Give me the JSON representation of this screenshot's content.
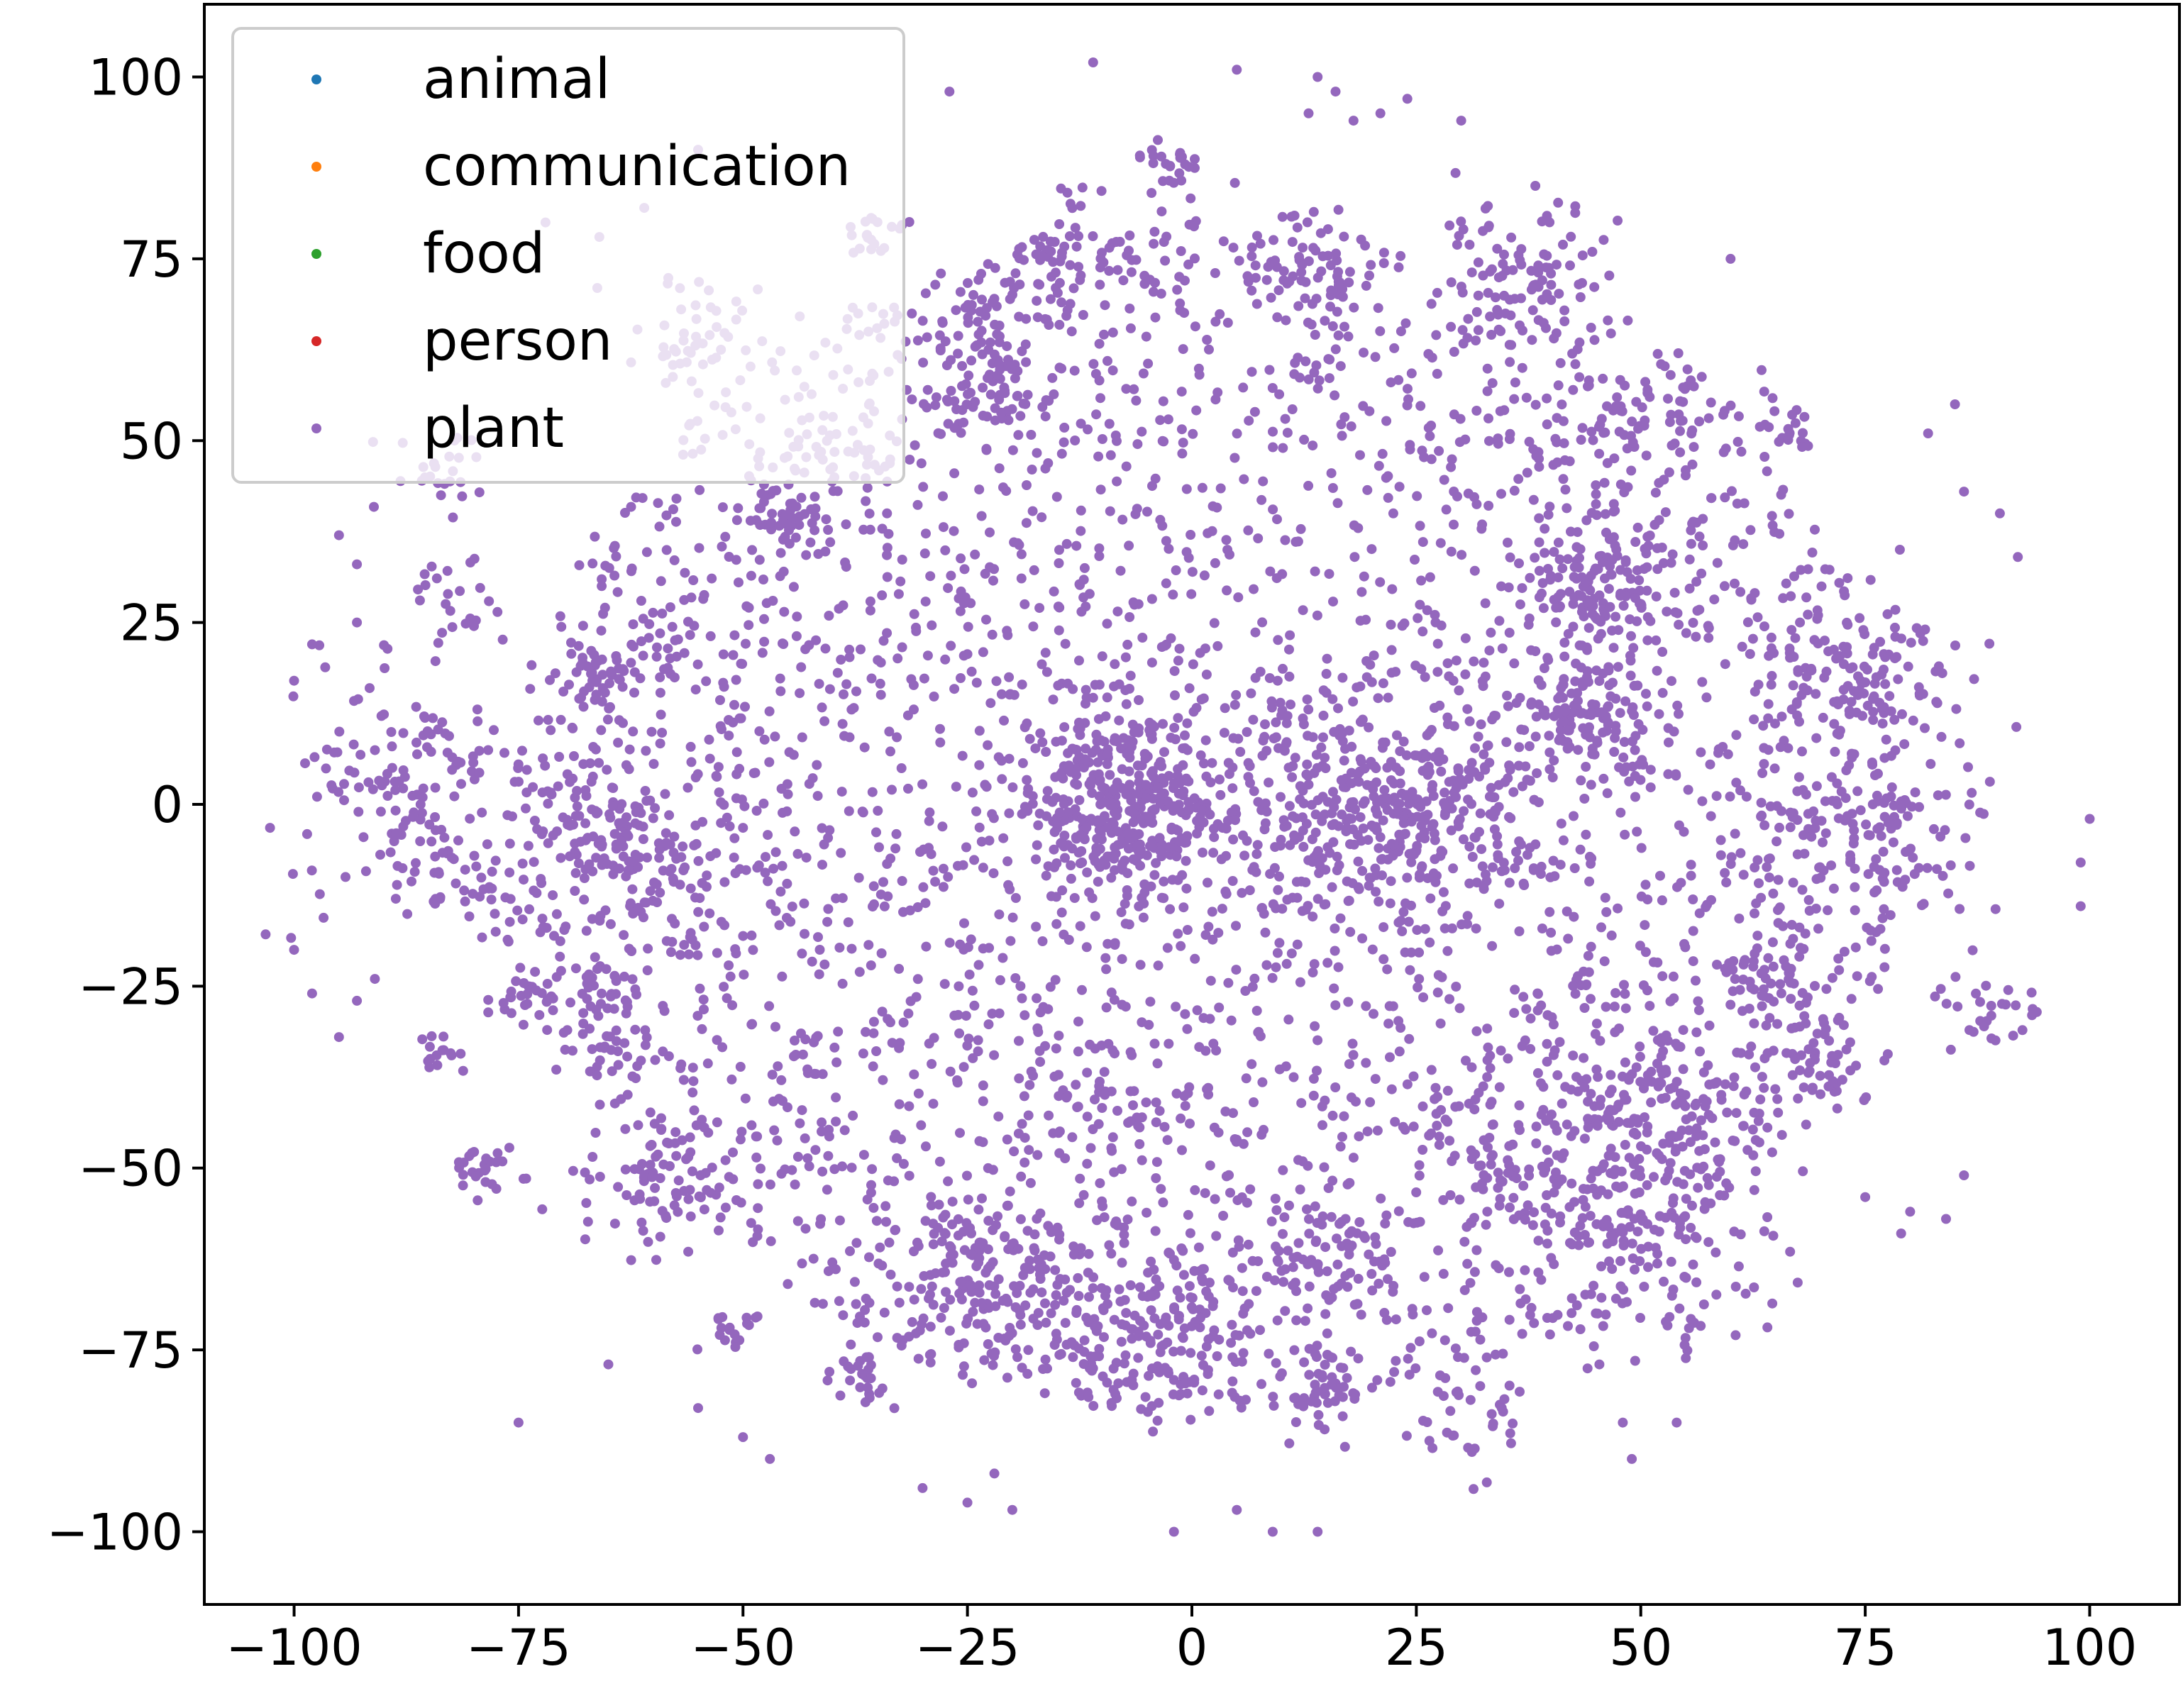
{
  "chart_data": {
    "type": "scatter",
    "title": "",
    "xlabel": "",
    "ylabel": "",
    "xlim": [
      -110,
      110
    ],
    "ylim": [
      -110,
      110
    ],
    "x_ticks": [
      -100,
      -75,
      -50,
      -25,
      0,
      25,
      50,
      75,
      100
    ],
    "y_ticks": [
      -100,
      -75,
      -50,
      -25,
      0,
      25,
      50,
      75,
      100
    ],
    "x_tick_labels": [
      "−100",
      "−75",
      "−50",
      "−25",
      "0",
      "25",
      "50",
      "75",
      "100"
    ],
    "y_tick_labels": [
      "−100",
      "−75",
      "−50",
      "−25",
      "0",
      "25",
      "50",
      "75",
      "100"
    ],
    "grid": false,
    "legend_position": "top-left",
    "series": [
      {
        "name": "animal",
        "color": "#1f77b4",
        "points": []
      },
      {
        "name": "communication",
        "color": "#ff7f0e",
        "points": []
      },
      {
        "name": "food",
        "color": "#2ca02c",
        "points": []
      },
      {
        "name": "person",
        "color": "#d62728",
        "points": []
      },
      {
        "name": "plant",
        "color": "#9467bd",
        "clusters": [
          {
            "cx": -8,
            "cy": 0,
            "n": 340,
            "r": 6
          },
          {
            "cx": 20,
            "cy": -1,
            "n": 300,
            "r": 8
          },
          {
            "cx": -86,
            "cy": 1,
            "n": 160,
            "r": 8
          },
          {
            "cx": -63,
            "cy": -4,
            "n": 150,
            "r": 7
          },
          {
            "cx": 45,
            "cy": 30,
            "n": 110,
            "r": 4
          },
          {
            "cx": 45,
            "cy": 12,
            "n": 100,
            "r": 4
          },
          {
            "cx": 76,
            "cy": 18,
            "n": 110,
            "r": 6
          },
          {
            "cx": 75,
            "cy": -4,
            "n": 110,
            "r": 7
          },
          {
            "cx": 51,
            "cy": -43,
            "n": 150,
            "r": 7
          },
          {
            "cx": 51,
            "cy": -62,
            "n": 130,
            "r": 7
          },
          {
            "cx": 34,
            "cy": -49,
            "n": 60,
            "r": 5
          },
          {
            "cx": -23,
            "cy": -65,
            "n": 150,
            "r": 6
          },
          {
            "cx": -4,
            "cy": -73,
            "n": 150,
            "r": 6
          },
          {
            "cx": 16,
            "cy": -63,
            "n": 70,
            "r": 5
          },
          {
            "cx": -59,
            "cy": -53,
            "n": 80,
            "r": 5
          },
          {
            "cx": -79,
            "cy": -50,
            "n": 25,
            "r": 2
          },
          {
            "cx": -37,
            "cy": -79,
            "n": 28,
            "r": 2
          },
          {
            "cx": -51,
            "cy": -72,
            "n": 18,
            "r": 1.5
          },
          {
            "cx": 16,
            "cy": -81,
            "n": 40,
            "r": 3
          },
          {
            "cx": 31,
            "cy": -85,
            "n": 35,
            "r": 3
          },
          {
            "cx": -45,
            "cy": 40,
            "n": 35,
            "r": 2.5
          },
          {
            "cx": -22,
            "cy": 56,
            "n": 60,
            "r": 4
          },
          {
            "cx": -24,
            "cy": 65,
            "n": 30,
            "r": 3
          },
          {
            "cx": -12,
            "cy": 75,
            "n": 70,
            "r": 5
          },
          {
            "cx": -2,
            "cy": 88,
            "n": 25,
            "r": 2
          },
          {
            "cx": 14,
            "cy": 73,
            "n": 60,
            "r": 4
          },
          {
            "cx": 37,
            "cy": 74,
            "n": 90,
            "r": 5
          },
          {
            "cx": 52,
            "cy": 54,
            "n": 60,
            "r": 5
          },
          {
            "cx": 67,
            "cy": 51,
            "n": 20,
            "r": 1.5
          },
          {
            "cx": 72,
            "cy": -35,
            "n": 40,
            "r": 3
          },
          {
            "cx": 65,
            "cy": -24,
            "n": 35,
            "r": 3
          },
          {
            "cx": 89,
            "cy": -28,
            "n": 30,
            "r": 3
          },
          {
            "cx": -80,
            "cy": -12,
            "n": 30,
            "r": 3
          },
          {
            "cx": -67,
            "cy": -29,
            "n": 50,
            "r": 4
          },
          {
            "cx": -75,
            "cy": -27,
            "n": 25,
            "r": 2
          },
          {
            "cx": -84,
            "cy": -35,
            "n": 15,
            "r": 1.5
          },
          {
            "cx": -66,
            "cy": 16,
            "n": 25,
            "r": 2
          },
          {
            "cx": -83,
            "cy": 45,
            "n": 25,
            "r": 3
          },
          {
            "cx": -55,
            "cy": 65,
            "n": 50,
            "r": 4
          },
          {
            "cx": -40,
            "cy": 50,
            "n": 45,
            "r": 4
          },
          {
            "cx": -60,
            "cy": 21,
            "n": 25,
            "r": 3
          },
          {
            "cx": -81,
            "cy": 27,
            "n": 25,
            "r": 3
          },
          {
            "cx": -35,
            "cy": 78,
            "n": 20,
            "r": 2
          },
          {
            "cx": -8,
            "cy": -40,
            "n": 40,
            "r": 6
          },
          {
            "cx": 30,
            "cy": -5,
            "n": 40,
            "r": 6
          }
        ],
        "scatter": {
          "n": 3000,
          "radius": 78
        },
        "outliers": [
          [
            -100,
            17
          ],
          [
            -98,
            22
          ],
          [
            -95,
            37
          ],
          [
            -93,
            33
          ],
          [
            -93,
            25
          ],
          [
            -100,
            -20
          ],
          [
            -98,
            -26
          ],
          [
            -95,
            -32
          ],
          [
            -93,
            -27
          ],
          [
            -91,
            -24
          ],
          [
            -75,
            -85
          ],
          [
            -65,
            -77
          ],
          [
            -55,
            -83
          ],
          [
            -50,
            -87
          ],
          [
            -47,
            -90
          ],
          [
            -30,
            -94
          ],
          [
            -25,
            -96
          ],
          [
            -22,
            -92
          ],
          [
            -20,
            -97
          ],
          [
            -2,
            -100
          ],
          [
            5,
            -97
          ],
          [
            9,
            -100
          ],
          [
            14,
            -100
          ],
          [
            48,
            -85
          ],
          [
            49,
            -90
          ],
          [
            54,
            -85
          ],
          [
            75,
            -54
          ],
          [
            79,
            -59
          ],
          [
            80,
            -56
          ],
          [
            86,
            -51
          ],
          [
            84,
            -57
          ],
          [
            99,
            -8
          ],
          [
            99,
            -14
          ],
          [
            100,
            -2
          ],
          [
            85,
            55
          ],
          [
            90,
            40
          ],
          [
            92,
            34
          ],
          [
            82,
            51
          ],
          [
            86,
            43
          ],
          [
            60,
            75
          ],
          [
            13,
            95
          ],
          [
            16,
            98
          ],
          [
            18,
            94
          ],
          [
            21,
            95
          ],
          [
            24,
            97
          ],
          [
            30,
            94
          ],
          [
            14,
            100
          ],
          [
            5,
            101
          ],
          [
            -11,
            102
          ],
          [
            -27,
            98
          ],
          [
            -55,
            90
          ],
          [
            -61,
            82
          ],
          [
            -72,
            80
          ],
          [
            -66,
            78
          ]
        ]
      }
    ]
  }
}
